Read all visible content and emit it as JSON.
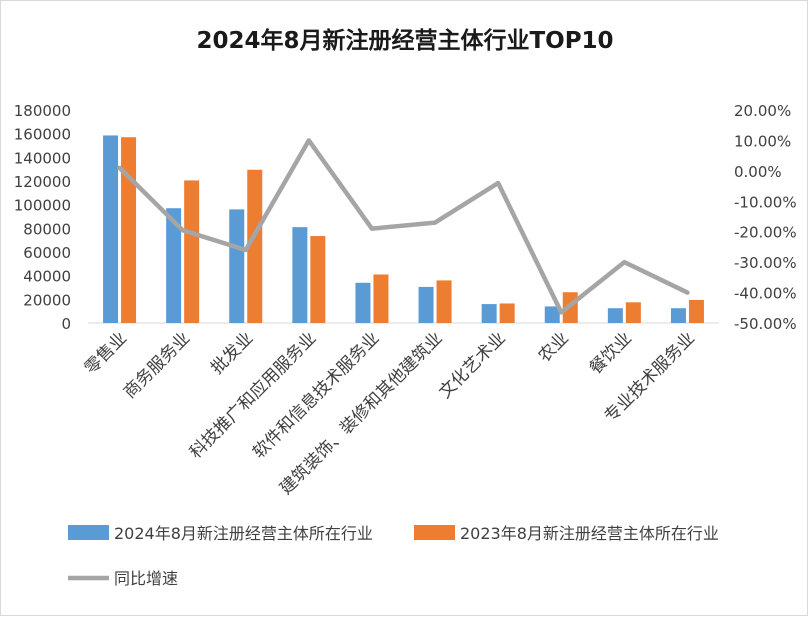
{
  "chart_data": {
    "type": "bar",
    "title": "2024年8月新注册经营主体行业TOP10",
    "categories": [
      "零售业",
      "商务服务业",
      "批发业",
      "科技推广和应用服务业",
      "软件和信息技术服务业",
      "建筑装饰、装修和其他建筑业",
      "文化艺术业",
      "农业",
      "餐饮业",
      "专业技术服务业"
    ],
    "series": [
      {
        "name": "2024年8月新注册经营主体所在行业",
        "kind": "bar",
        "axis": "left",
        "color": "#5b9bd5",
        "values": [
          158500,
          97000,
          96000,
          81000,
          34000,
          30500,
          16000,
          14000,
          12500,
          12500
        ]
      },
      {
        "name": "2023年8月新注册经营主体所在行业",
        "kind": "bar",
        "axis": "left",
        "color": "#ed7d31",
        "values": [
          157000,
          120500,
          129500,
          73500,
          41000,
          36000,
          16500,
          26000,
          17500,
          19500
        ]
      },
      {
        "name": "同比增速",
        "kind": "line",
        "axis": "right",
        "color": "#a5a5a5",
        "values": [
          0.01,
          -0.195,
          -0.26,
          0.1,
          -0.19,
          -0.17,
          -0.04,
          -0.465,
          -0.3,
          -0.4
        ]
      }
    ],
    "left_axis": {
      "ylim": [
        0,
        180000
      ],
      "ticks": [
        0,
        20000,
        40000,
        60000,
        80000,
        100000,
        120000,
        140000,
        160000,
        180000
      ],
      "tick_labels": [
        "0",
        "20000",
        "40000",
        "60000",
        "80000",
        "100000",
        "120000",
        "140000",
        "160000",
        "180000"
      ]
    },
    "right_axis": {
      "ylim": [
        -0.5,
        0.2
      ],
      "ticks": [
        -0.5,
        -0.4,
        -0.3,
        -0.2,
        -0.1,
        0,
        0.1,
        0.2
      ],
      "tick_labels": [
        "-50.00%",
        "-40.00%",
        "-30.00%",
        "-20.00%",
        "-10.00%",
        "0.00%",
        "10.00%",
        "20.00%"
      ]
    },
    "grid": false,
    "legend_position": "bottom"
  }
}
